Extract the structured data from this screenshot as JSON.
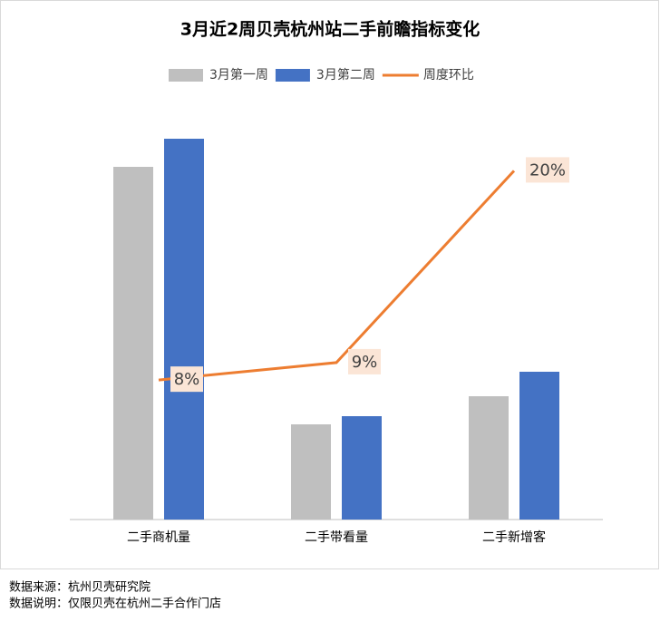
{
  "chart_data": {
    "type": "bar_line",
    "title": "3月近2周贝壳杭州站二手前瞻指标变化",
    "categories": [
      "二手商机量",
      "二手带看量",
      "二手新增客"
    ],
    "series": [
      {
        "name": "3月第一周",
        "type": "bar",
        "color": "#bfbfbf",
        "values": [
          389,
          105,
          136
        ]
      },
      {
        "name": "3月第二周",
        "type": "bar",
        "color": "#4472c4",
        "values": [
          420,
          114,
          163
        ]
      },
      {
        "name": "周度环比",
        "type": "line",
        "axis": "y2",
        "color": "#ed7d31",
        "values": [
          8,
          9,
          20
        ],
        "value_labels": [
          "8%",
          "9%",
          "20%"
        ]
      }
    ],
    "ylim": [
      0,
      450
    ],
    "y2lim": [
      0,
      23.4
    ],
    "legend": "top",
    "footer": [
      "数据来源：杭州贝壳研究院",
      "数据说明：仅限贝壳在杭州二手合作门店"
    ]
  }
}
